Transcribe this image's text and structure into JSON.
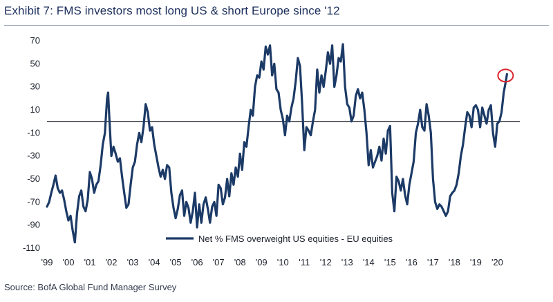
{
  "title": "Exhibit 7: FMS investors most long US & short Europe since '12",
  "source": "Source: BofA Global Fund Manager Survey",
  "colors": {
    "series": "#1c3a66",
    "highlight": "#d9262e",
    "zero_line": "#1b1f2a"
  },
  "chart_data": {
    "type": "line",
    "xlabel": "",
    "ylabel": "",
    "ylim": [
      -110,
      70
    ],
    "y_ticks": [
      70,
      50,
      30,
      10,
      -10,
      -30,
      -50,
      -70,
      -90,
      -110
    ],
    "x_range": [
      1999.0,
      2021.05
    ],
    "x_ticks": [
      {
        "label": "'99",
        "x": 1999.0
      },
      {
        "label": "'00",
        "x": 2000.0
      },
      {
        "label": "'01",
        "x": 2001.0
      },
      {
        "label": "'02",
        "x": 2002.0
      },
      {
        "label": "'03",
        "x": 2003.0
      },
      {
        "label": "'04",
        "x": 2004.0
      },
      {
        "label": "'05",
        "x": 2005.0
      },
      {
        "label": "'06",
        "x": 2006.0
      },
      {
        "label": "'07",
        "x": 2007.0
      },
      {
        "label": "'08",
        "x": 2008.0
      },
      {
        "label": "'09",
        "x": 2009.0
      },
      {
        "label": "'10",
        "x": 2010.0
      },
      {
        "label": "'11",
        "x": 2011.0
      },
      {
        "label": "'12",
        "x": 2012.0
      },
      {
        "label": "'13",
        "x": 2013.0
      },
      {
        "label": "'14",
        "x": 2014.0
      },
      {
        "label": "'15",
        "x": 2015.0
      },
      {
        "label": "'16",
        "x": 2016.0
      },
      {
        "label": "'17",
        "x": 2017.0
      },
      {
        "label": "'18",
        "x": 2018.0
      },
      {
        "label": "'19",
        "x": 2019.0
      },
      {
        "label": "'20",
        "x": 2020.0
      }
    ],
    "grid": false,
    "legend": "bottom-center",
    "highlight_point": {
      "x": 2020.45,
      "y": 41
    },
    "series": [
      {
        "name": "Net % FMS overweight US equities - EU equities",
        "points": [
          [
            1999.0,
            -74
          ],
          [
            1999.1,
            -70
          ],
          [
            1999.2,
            -62
          ],
          [
            1999.3,
            -55
          ],
          [
            1999.4,
            -47
          ],
          [
            1999.5,
            -58
          ],
          [
            1999.6,
            -62
          ],
          [
            1999.7,
            -60
          ],
          [
            1999.8,
            -68
          ],
          [
            1999.9,
            -78
          ],
          [
            2000.0,
            -86
          ],
          [
            2000.1,
            -82
          ],
          [
            2000.2,
            -95
          ],
          [
            2000.3,
            -105
          ],
          [
            2000.4,
            -80
          ],
          [
            2000.5,
            -65
          ],
          [
            2000.6,
            -60
          ],
          [
            2000.7,
            -74
          ],
          [
            2000.8,
            -78
          ],
          [
            2000.9,
            -68
          ],
          [
            2001.0,
            -44
          ],
          [
            2001.1,
            -50
          ],
          [
            2001.2,
            -62
          ],
          [
            2001.3,
            -55
          ],
          [
            2001.4,
            -52
          ],
          [
            2001.5,
            -38
          ],
          [
            2001.6,
            -20
          ],
          [
            2001.7,
            -10
          ],
          [
            2001.8,
            20
          ],
          [
            2001.85,
            25
          ],
          [
            2001.9,
            5
          ],
          [
            2002.0,
            -30
          ],
          [
            2002.1,
            -22
          ],
          [
            2002.2,
            -28
          ],
          [
            2002.3,
            -35
          ],
          [
            2002.4,
            -32
          ],
          [
            2002.5,
            -48
          ],
          [
            2002.6,
            -62
          ],
          [
            2002.7,
            -75
          ],
          [
            2002.8,
            -72
          ],
          [
            2002.9,
            -55
          ],
          [
            2003.0,
            -40
          ],
          [
            2003.1,
            -35
          ],
          [
            2003.2,
            -20
          ],
          [
            2003.3,
            -10
          ],
          [
            2003.4,
            -18
          ],
          [
            2003.5,
            -5
          ],
          [
            2003.6,
            15
          ],
          [
            2003.7,
            8
          ],
          [
            2003.8,
            -8
          ],
          [
            2003.9,
            -5
          ],
          [
            2004.0,
            -20
          ],
          [
            2004.1,
            -30
          ],
          [
            2004.2,
            -40
          ],
          [
            2004.3,
            -48
          ],
          [
            2004.4,
            -42
          ],
          [
            2004.5,
            -50
          ],
          [
            2004.6,
            -38
          ],
          [
            2004.7,
            -40
          ],
          [
            2004.8,
            -62
          ],
          [
            2004.9,
            -75
          ],
          [
            2005.0,
            -84
          ],
          [
            2005.1,
            -76
          ],
          [
            2005.2,
            -64
          ],
          [
            2005.3,
            -60
          ],
          [
            2005.4,
            -82
          ],
          [
            2005.5,
            -70
          ],
          [
            2005.6,
            -75
          ],
          [
            2005.7,
            -88
          ],
          [
            2005.8,
            -78
          ],
          [
            2005.9,
            -62
          ],
          [
            2006.0,
            -92
          ],
          [
            2006.1,
            -72
          ],
          [
            2006.2,
            -88
          ],
          [
            2006.3,
            -72
          ],
          [
            2006.4,
            -66
          ],
          [
            2006.5,
            -76
          ],
          [
            2006.6,
            -88
          ],
          [
            2006.7,
            -74
          ],
          [
            2006.8,
            -70
          ],
          [
            2006.9,
            -82
          ],
          [
            2007.0,
            -55
          ],
          [
            2007.1,
            -58
          ],
          [
            2007.2,
            -72
          ],
          [
            2007.3,
            -66
          ],
          [
            2007.4,
            -50
          ],
          [
            2007.5,
            -65
          ],
          [
            2007.6,
            -45
          ],
          [
            2007.7,
            -55
          ],
          [
            2007.8,
            -40
          ],
          [
            2007.9,
            -48
          ],
          [
            2008.0,
            -28
          ],
          [
            2008.1,
            -42
          ],
          [
            2008.2,
            -18
          ],
          [
            2008.3,
            -22
          ],
          [
            2008.4,
            -5
          ],
          [
            2008.5,
            10
          ],
          [
            2008.6,
            5
          ],
          [
            2008.7,
            30
          ],
          [
            2008.8,
            40
          ],
          [
            2008.9,
            38
          ],
          [
            2009.0,
            52
          ],
          [
            2009.1,
            45
          ],
          [
            2009.2,
            65
          ],
          [
            2009.3,
            58
          ],
          [
            2009.4,
            66
          ],
          [
            2009.5,
            40
          ],
          [
            2009.6,
            50
          ],
          [
            2009.7,
            28
          ],
          [
            2009.8,
            25
          ],
          [
            2009.9,
            10
          ],
          [
            2010.0,
            2
          ],
          [
            2010.1,
            -12
          ],
          [
            2010.2,
            5
          ],
          [
            2010.3,
            0
          ],
          [
            2010.4,
            12
          ],
          [
            2010.5,
            20
          ],
          [
            2010.6,
            35
          ],
          [
            2010.7,
            55
          ],
          [
            2010.8,
            48
          ],
          [
            2010.9,
            15
          ],
          [
            2011.0,
            -25
          ],
          [
            2011.1,
            -5
          ],
          [
            2011.2,
            -8
          ],
          [
            2011.3,
            -12
          ],
          [
            2011.4,
            0
          ],
          [
            2011.5,
            10
          ],
          [
            2011.6,
            45
          ],
          [
            2011.7,
            25
          ],
          [
            2011.8,
            40
          ],
          [
            2011.9,
            30
          ],
          [
            2012.0,
            44
          ],
          [
            2012.1,
            60
          ],
          [
            2012.2,
            50
          ],
          [
            2012.3,
            66
          ],
          [
            2012.4,
            30
          ],
          [
            2012.5,
            40
          ],
          [
            2012.6,
            55
          ],
          [
            2012.7,
            52
          ],
          [
            2012.8,
            67
          ],
          [
            2012.9,
            30
          ],
          [
            2013.0,
            15
          ],
          [
            2013.1,
            12
          ],
          [
            2013.2,
            0
          ],
          [
            2013.3,
            5
          ],
          [
            2013.4,
            22
          ],
          [
            2013.5,
            28
          ],
          [
            2013.6,
            20
          ],
          [
            2013.7,
            25
          ],
          [
            2013.8,
            10
          ],
          [
            2013.9,
            -10
          ],
          [
            2014.0,
            -38
          ],
          [
            2014.1,
            -25
          ],
          [
            2014.2,
            -40
          ],
          [
            2014.3,
            -35
          ],
          [
            2014.4,
            -30
          ],
          [
            2014.5,
            -22
          ],
          [
            2014.6,
            -34
          ],
          [
            2014.7,
            -15
          ],
          [
            2014.8,
            -28
          ],
          [
            2014.9,
            -8
          ],
          [
            2015.0,
            -4
          ],
          [
            2015.1,
            -62
          ],
          [
            2015.2,
            -78
          ],
          [
            2015.3,
            -48
          ],
          [
            2015.4,
            -52
          ],
          [
            2015.5,
            -60
          ],
          [
            2015.6,
            -50
          ],
          [
            2015.7,
            -64
          ],
          [
            2015.8,
            -72
          ],
          [
            2015.9,
            -55
          ],
          [
            2016.0,
            -45
          ],
          [
            2016.1,
            -35
          ],
          [
            2016.2,
            -10
          ],
          [
            2016.3,
            -2
          ],
          [
            2016.4,
            10
          ],
          [
            2016.5,
            -5
          ],
          [
            2016.6,
            -8
          ],
          [
            2016.7,
            15
          ],
          [
            2016.8,
            5
          ],
          [
            2016.9,
            -10
          ],
          [
            2017.0,
            -50
          ],
          [
            2017.1,
            -70
          ],
          [
            2017.2,
            -76
          ],
          [
            2017.3,
            -72
          ],
          [
            2017.4,
            -74
          ],
          [
            2017.5,
            -78
          ],
          [
            2017.6,
            -82
          ],
          [
            2017.7,
            -78
          ],
          [
            2017.8,
            -65
          ],
          [
            2017.9,
            -62
          ],
          [
            2018.0,
            -60
          ],
          [
            2018.1,
            -55
          ],
          [
            2018.2,
            -45
          ],
          [
            2018.3,
            -30
          ],
          [
            2018.4,
            -20
          ],
          [
            2018.5,
            -5
          ],
          [
            2018.6,
            8
          ],
          [
            2018.7,
            5
          ],
          [
            2018.8,
            -5
          ],
          [
            2018.9,
            12
          ],
          [
            2019.0,
            14
          ],
          [
            2019.1,
            10
          ],
          [
            2019.2,
            -5
          ],
          [
            2019.3,
            12
          ],
          [
            2019.4,
            5
          ],
          [
            2019.5,
            -2
          ],
          [
            2019.6,
            10
          ],
          [
            2019.7,
            14
          ],
          [
            2019.8,
            -10
          ],
          [
            2019.9,
            -22
          ],
          [
            2020.0,
            -2
          ],
          [
            2020.1,
            0
          ],
          [
            2020.2,
            8
          ],
          [
            2020.3,
            25
          ],
          [
            2020.4,
            35
          ],
          [
            2020.45,
            41
          ]
        ]
      }
    ]
  }
}
